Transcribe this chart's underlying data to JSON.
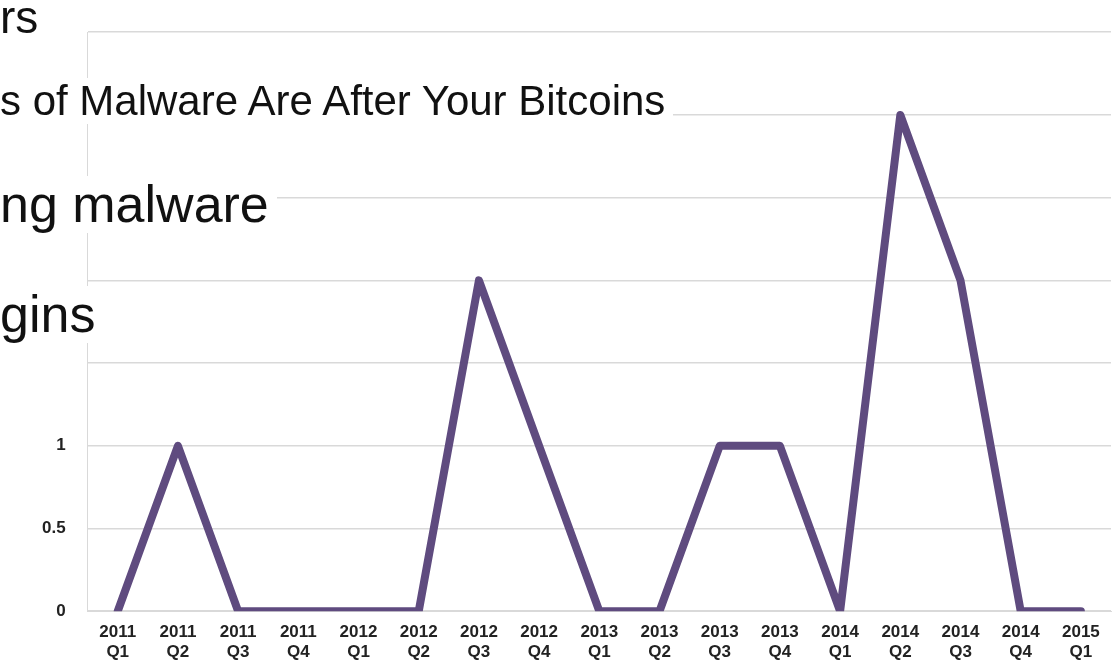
{
  "chart_data": {
    "type": "line",
    "annotations": [
      "rs",
      "s of Malware Are After Your Bitcoins",
      "ng malware",
      "gins"
    ],
    "categories": [
      "2011 Q1",
      "2011 Q2",
      "2011 Q3",
      "2011 Q4",
      "2012 Q1",
      "2012 Q2",
      "2012 Q3",
      "2012 Q4",
      "2013 Q1",
      "2013 Q2",
      "2013 Q3",
      "2013 Q4",
      "2014 Q1",
      "2014 Q2",
      "2014 Q3",
      "2014 Q4",
      "2015 Q1"
    ],
    "series": [
      {
        "color": "#5f4b7f",
        "values": [
          0,
          1,
          0,
          0,
          0,
          0,
          2,
          1,
          0,
          0,
          1,
          1,
          0,
          3,
          2,
          0,
          0
        ]
      }
    ],
    "ylim": [
      0,
      3.5
    ],
    "yticks": [
      0,
      0.5,
      1,
      {
        "value": 1.5,
        "label": null
      },
      {
        "value": 2,
        "label": null
      },
      {
        "value": 2.5,
        "label": null
      },
      {
        "value": 3,
        "label": null
      },
      {
        "value": 3.5,
        "label": null
      }
    ],
    "grid": "y",
    "marker": "none",
    "line_style": "solid",
    "legend": false
  }
}
